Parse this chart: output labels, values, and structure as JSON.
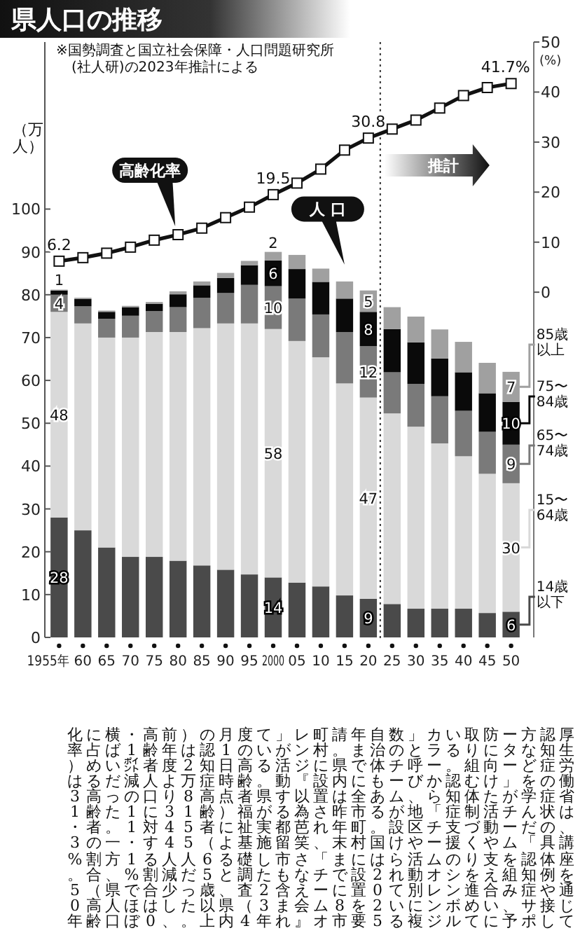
{
  "chart_data": {
    "type": "bar",
    "title": "県人口の推移",
    "stacked": true,
    "ylabel": "（万人）",
    "y2label": "(%)",
    "x": [
      1955,
      1960,
      1965,
      1970,
      1975,
      1980,
      1985,
      1990,
      1995,
      2000,
      2005,
      2010,
      2015,
      2020,
      2025,
      2030,
      2035,
      2040,
      2045,
      2050
    ],
    "xlim": [
      1952,
      2053
    ],
    "xticks": [
      {
        "value": 1955,
        "label": "1955年"
      },
      {
        "value": 1960,
        "label": "60"
      },
      {
        "value": 1965,
        "label": "65"
      },
      {
        "value": 1970,
        "label": "70"
      },
      {
        "value": 1975,
        "label": "75"
      },
      {
        "value": 1980,
        "label": "80"
      },
      {
        "value": 1985,
        "label": "85"
      },
      {
        "value": 1990,
        "label": "90"
      },
      {
        "value": 1995,
        "label": "95"
      },
      2000,
      {
        "value": 2005,
        "label": "05"
      },
      {
        "value": 2010,
        "label": "10"
      },
      {
        "value": 2015,
        "label": "15"
      },
      {
        "value": 2020,
        "label": "20"
      },
      {
        "value": 2025,
        "label": "25"
      },
      {
        "value": 2030,
        "label": "30"
      },
      {
        "value": 2035,
        "label": "35"
      },
      {
        "value": 2040,
        "label": "40"
      },
      {
        "value": 2045,
        "label": "45"
      },
      {
        "value": 2050,
        "label": "50"
      }
    ],
    "ylim": [
      0,
      139
    ],
    "yticks": [
      0,
      10,
      20,
      30,
      40,
      50,
      60,
      70,
      80,
      90,
      100
    ],
    "y2lim": [
      -69,
      50
    ],
    "y2ticks": [
      0,
      10,
      20,
      30,
      40,
      50
    ],
    "series": [
      {
        "name": "14歳以下",
        "color": "#4a4a4a",
        "values": [
          28,
          25.0,
          21.0,
          18.8,
          18.8,
          17.9,
          16.8,
          15.8,
          14.7,
          14,
          12.8,
          11.9,
          9.8,
          9,
          7.8,
          6.7,
          6.7,
          6.7,
          5.7,
          6
        ],
        "value_labels": [
          "28",
          null,
          null,
          null,
          null,
          null,
          null,
          null,
          null,
          "14",
          null,
          null,
          null,
          "9",
          null,
          null,
          null,
          null,
          null,
          "6"
        ]
      },
      {
        "name": "15〜64歳",
        "color": "#d9d9d9",
        "values": [
          48,
          48.3,
          49.0,
          51.2,
          52.5,
          53.4,
          55.4,
          57.5,
          58.6,
          58,
          56.4,
          53.5,
          49.5,
          47,
          44.5,
          42.5,
          38.6,
          35.6,
          32.5,
          30
        ],
        "value_labels": [
          "48",
          null,
          null,
          null,
          null,
          null,
          null,
          null,
          null,
          "58",
          null,
          null,
          null,
          "47",
          null,
          null,
          null,
          null,
          null,
          "30"
        ]
      },
      {
        "name": "65〜74歳",
        "color": "#7a7a7a",
        "values": [
          4,
          4.0,
          4.4,
          5.1,
          4.9,
          5.8,
          7.1,
          7.1,
          9.0,
          10,
          9.9,
          10.0,
          12.0,
          12,
          9.6,
          10.0,
          11.0,
          10.6,
          9.8,
          9
        ],
        "value_labels": [
          "4",
          null,
          null,
          null,
          null,
          null,
          null,
          null,
          null,
          "10",
          null,
          null,
          null,
          "12",
          null,
          null,
          null,
          null,
          null,
          "9"
        ]
      },
      {
        "name": "75〜84歳",
        "color": "#0a0a0a",
        "values": [
          1,
          1.7,
          1.6,
          2.0,
          1.7,
          3.0,
          2.9,
          3.5,
          4.6,
          6,
          6.9,
          7.6,
          7.8,
          8,
          10.1,
          9.7,
          8.8,
          9.0,
          9.0,
          10
        ],
        "value_labels": [
          "1",
          null,
          null,
          null,
          null,
          null,
          null,
          null,
          null,
          "6",
          null,
          null,
          null,
          "8",
          null,
          null,
          null,
          null,
          null,
          "10"
        ]
      },
      {
        "name": "85歳以上",
        "color": "#a0a0a0",
        "values": [
          0.2,
          0.3,
          0.3,
          0.3,
          0.4,
          0.7,
          0.9,
          1.2,
          1.0,
          2,
          3.3,
          3.1,
          4.0,
          5,
          5.1,
          6.0,
          6.8,
          7.1,
          7.1,
          7
        ],
        "value_labels": [
          null,
          null,
          null,
          null,
          null,
          null,
          null,
          null,
          null,
          "2",
          null,
          null,
          null,
          "5",
          null,
          null,
          null,
          null,
          null,
          "7"
        ]
      },
      {
        "name": "高齢化率",
        "type": "line",
        "axis": "y2",
        "marker": "square",
        "color": "#111111",
        "values": [
          6.2,
          6.9,
          7.8,
          9.0,
          10.4,
          11.5,
          12.8,
          14.9,
          17.0,
          19.5,
          21.8,
          24.6,
          28.4,
          30.8,
          32.6,
          34.4,
          36.8,
          39.3,
          40.9,
          41.7
        ],
        "value_labels": [
          "6.2",
          null,
          null,
          null,
          null,
          null,
          null,
          null,
          null,
          "19.5",
          null,
          null,
          null,
          "30.8",
          null,
          null,
          null,
          null,
          null,
          "41.7%"
        ]
      }
    ],
    "ref_lines": [
      {
        "axis": "x",
        "value": 2022.5,
        "line_style": "dotted",
        "color": "#333333"
      }
    ],
    "annotations": [
      "※国勢調査と国立社会保障・人口問題研究所(社人研)の2023年推計による",
      "人 口",
      "推計",
      "厚生労働省は、講座を通じて認知症の症状の具体例や接し方などを学んだ「認知症サポーター」がチームを組み、予防に向けた活動や支え合いに取り組む体制づくりを進めている。認知症支援のシンボルカラーから「チームオレンジ」と呼び、地区や活動別に複数のチームが設けられている自治体もある。国は2025年までに全市町村に設置を要請。県内は昨年末までに8市町村に設置され、「チームオレンジ『以為芭笑さなえ会』」が活動する都留市も含まれている。県が実施した23年度の高齢者福祉基礎調査（4月1日時点）によると、県内の認知症高齢者（65歳以上）は2万8155人だった。前年度より344人減少し、高齢者人口に対する割合は0・1㌽減の11・1%でほぼ横ばいだった。一方、県人口に占める高齢者の割合（高齢化率）は31・3%。50年"
    ]
  }
}
